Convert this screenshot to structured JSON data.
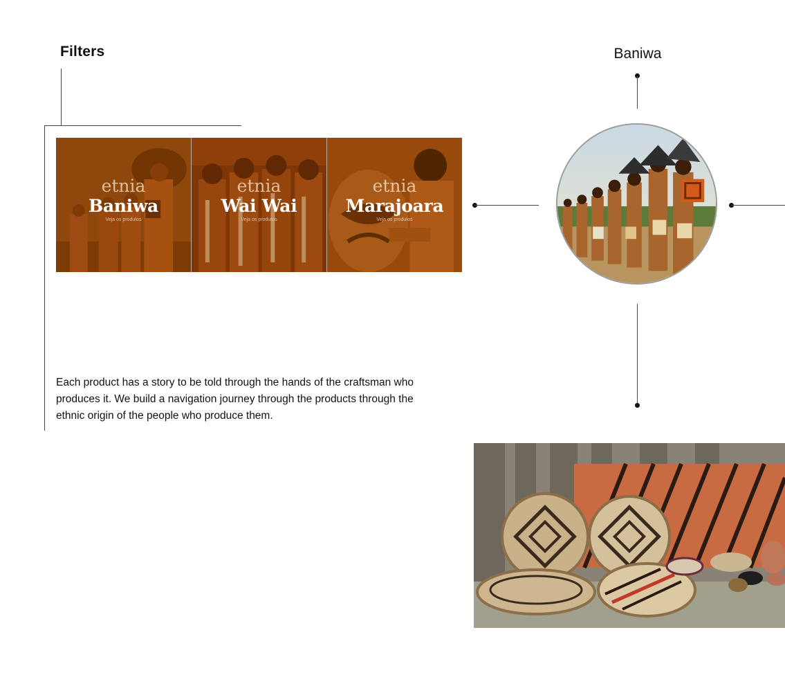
{
  "filters": {
    "title": "Filters"
  },
  "ethnic_cards": [
    {
      "kicker": "etnia",
      "name": "Baniwa",
      "cta": "Veja os produtos"
    },
    {
      "kicker": "etnia",
      "name": "Wai Wai",
      "cta": "Veja os produtos"
    },
    {
      "kicker": "etnia",
      "name": "Marajoara",
      "cta": "Veja os produtos"
    }
  ],
  "description": "Each product has a story to be told through the hands of the craftsman who produces it. We build a navigation journey through the products through the ethnic origin of the people who produce them.",
  "detail": {
    "title": "Baniwa"
  },
  "colors": {
    "overlay": "#96460a",
    "line": "#444444",
    "text": "#111111"
  }
}
